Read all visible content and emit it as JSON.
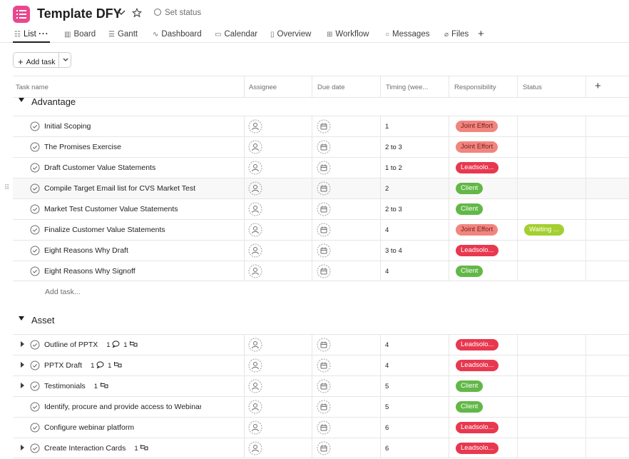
{
  "header": {
    "title": "Template DFY",
    "set_status": "Set status",
    "project_color": "#e8488e"
  },
  "tabs": [
    {
      "label": "List",
      "icon": "list-icon"
    },
    {
      "label": "Board",
      "icon": "board-icon"
    },
    {
      "label": "Gantt",
      "icon": "gantt-icon"
    },
    {
      "label": "Dashboard",
      "icon": "dashboard-icon"
    },
    {
      "label": "Calendar",
      "icon": "calendar-icon"
    },
    {
      "label": "Overview",
      "icon": "overview-icon"
    },
    {
      "label": "Workflow",
      "icon": "workflow-icon"
    },
    {
      "label": "Messages",
      "icon": "messages-icon"
    },
    {
      "label": "Files",
      "icon": "files-icon"
    }
  ],
  "toolbar": {
    "add_task_label": "Add task"
  },
  "columns": [
    "Task name",
    "Assignee",
    "Due date",
    "Timing (wee...",
    "Responsibility",
    "Status"
  ],
  "colors": {
    "joint_effort": "#f1857f",
    "leadsolo": "#e8384f",
    "client": "#5da283",
    "client_bright": "#62b847",
    "waiting": "#a4cf30"
  },
  "sections": [
    {
      "name": "Advantage",
      "add_task": "Add task...",
      "tasks": [
        {
          "name": "Initial Scoping",
          "timing": "1",
          "responsibility": "Joint Effort",
          "status": ""
        },
        {
          "name": "The Promises Exercise",
          "timing": "2 to 3",
          "responsibility": "Joint Effort",
          "status": ""
        },
        {
          "name": "Draft Customer Value Statements",
          "timing": "1 to 2",
          "responsibility": "Leadsolo...",
          "status": ""
        },
        {
          "name": "Compile Target Email list for CVS Market Test",
          "timing": "2",
          "responsibility": "Client",
          "status": ""
        },
        {
          "name": "Market Test Customer Value Statements",
          "timing": "2 to 3",
          "responsibility": "Client",
          "status": ""
        },
        {
          "name": "Finalize Customer Value Statements",
          "timing": "4",
          "responsibility": "Joint Effort",
          "status": "Waiting ..."
        },
        {
          "name": "Eight Reasons Why Draft",
          "timing": "3 to 4",
          "responsibility": "Leadsolo...",
          "status": ""
        },
        {
          "name": "Eight Reasons Why Signoff",
          "timing": "4",
          "responsibility": "Client",
          "status": ""
        }
      ]
    },
    {
      "name": "Asset",
      "tasks": [
        {
          "name": "Outline of PPTX",
          "comments": "1",
          "subtasks": "1",
          "timing": "4",
          "responsibility": "Leadsolo..."
        },
        {
          "name": "PPTX Draft",
          "comments": "1",
          "subtasks": "1",
          "timing": "4",
          "responsibility": "Leadsolo..."
        },
        {
          "name": "Testimonials",
          "subtasks": "1",
          "timing": "5",
          "responsibility": "Client"
        },
        {
          "name": "Identify, procure and provide access to Webinar platform",
          "timing": "5",
          "responsibility": "Client"
        },
        {
          "name": "Configure webinar platform",
          "timing": "6",
          "responsibility": "Leadsolo..."
        },
        {
          "name": "Create Interaction Cards",
          "subtasks": "1",
          "timing": "6",
          "responsibility": "Leadsolo..."
        }
      ]
    }
  ]
}
